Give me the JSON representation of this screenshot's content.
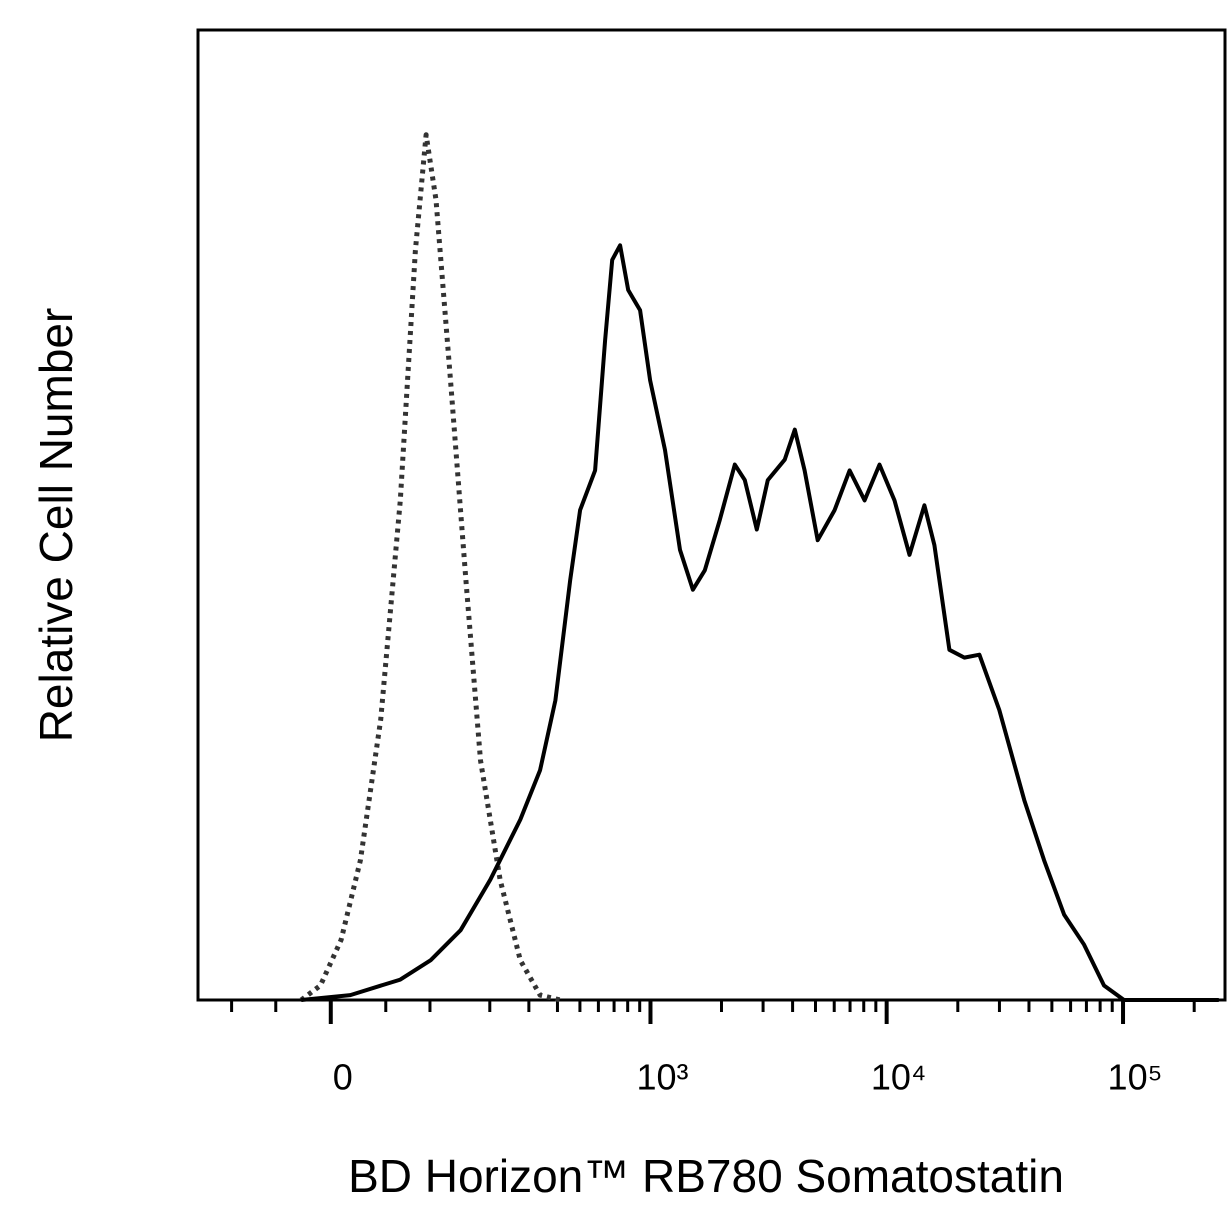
{
  "chart_data": {
    "type": "line",
    "x_label": "BD Horizon™ RB780 Somatostatin",
    "y_label": "Relative Cell Number",
    "xscale": "logicle",
    "xlim": [
      -150,
      270000
    ],
    "ylim": [
      0,
      100
    ],
    "xticks": [
      0,
      {
        "value": 1000,
        "label": "10³"
      },
      {
        "value": 10000,
        "label": "10⁴"
      },
      {
        "value": 100000,
        "label": "10⁵"
      }
    ],
    "xminorticks": [
      -100,
      -50,
      50,
      100,
      200,
      300,
      400,
      500,
      600,
      700,
      800,
      900,
      2000,
      3000,
      4000,
      5000,
      6000,
      7000,
      8000,
      9000,
      20000,
      30000,
      40000,
      50000,
      60000,
      70000,
      80000,
      90000,
      200000
    ],
    "series": [
      {
        "color": "#333333",
        "style": "dotted",
        "x": [
          -26,
          -9,
          9,
          26,
          45,
          65,
          82,
          95,
          108,
          129,
          154,
          181,
          223,
          275,
          336,
          411
        ],
        "values": [
          0,
          1.5,
          6.2,
          14.4,
          28.9,
          51.5,
          77.3,
          89.2,
          82.5,
          63.9,
          43.3,
          24.7,
          12.4,
          4.1,
          0.5,
          0
        ]
      },
      {
        "color": "#000000",
        "style": "solid",
        "x": [
          -26,
          17,
          65,
          101,
          145,
          201,
          275,
          336,
          392,
          454,
          501,
          581,
          641,
          687,
          743,
          804,
          903,
          996,
          1153,
          1334,
          1513,
          1700,
          1967,
          2278,
          2510,
          2821,
          3142,
          3702,
          4085,
          4495,
          5109,
          6025,
          6969,
          8063,
          9327,
          10796,
          12487,
          14445,
          15922,
          18432,
          21324,
          24671,
          29966,
          38208,
          46369,
          56337,
          68405,
          83099,
          100926,
          141688,
          254095
        ],
        "values": [
          0,
          0.5,
          2.1,
          4.1,
          7.2,
          12.4,
          18.6,
          23.7,
          30.9,
          43.3,
          50.5,
          54.6,
          68.0,
          76.3,
          77.8,
          73.2,
          71.1,
          63.9,
          56.7,
          46.4,
          42.3,
          44.3,
          49.5,
          55.2,
          53.6,
          48.5,
          53.6,
          55.7,
          58.8,
          54.6,
          47.4,
          50.5,
          54.6,
          51.5,
          55.2,
          51.5,
          45.9,
          51.0,
          46.9,
          36.1,
          35.3,
          35.6,
          29.9,
          20.6,
          14.4,
          8.8,
          5.7,
          1.5,
          0,
          0,
          0
        ]
      }
    ]
  }
}
